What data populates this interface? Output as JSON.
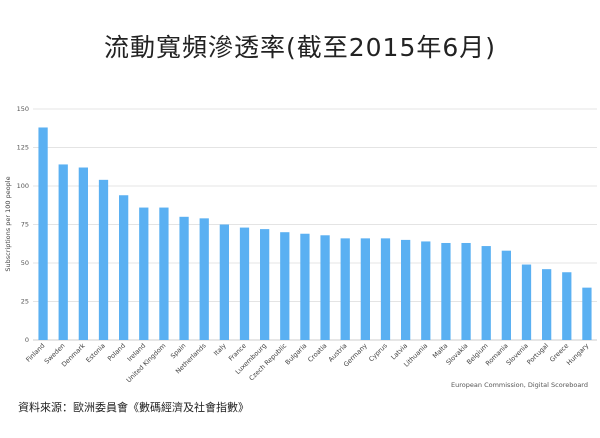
{
  "title": "流動寬頻滲透率(截至2015年6月)",
  "source_note": "資料來源：歐洲委員會《數碼經濟及社會指數》",
  "credit": "European Commission, Digital Scoreboard",
  "chart_data": {
    "type": "bar",
    "title": "流動寬頻滲透率(截至2015年6月)",
    "xlabel": "",
    "ylabel": "Subscriptions per 100 people",
    "ylim": [
      0,
      150
    ],
    "yticks": [
      0,
      25,
      50,
      75,
      100,
      125,
      150
    ],
    "grid": true,
    "bar_color": "#5ab0f2",
    "categories": [
      "Finland",
      "Sweden",
      "Denmark",
      "Estonia",
      "Poland",
      "Ireland",
      "United Kingdom",
      "Spain",
      "Netherlands",
      "Italy",
      "France",
      "Luxembourg",
      "Czech Republic",
      "Bulgaria",
      "Croatia",
      "Austria",
      "Germany",
      "Cyprus",
      "Latvia",
      "Lithuania",
      "Malta",
      "Slovakia",
      "Belgium",
      "Romania",
      "Slovenia",
      "Portugal",
      "Greece",
      "Hungary"
    ],
    "values": [
      138,
      114,
      112,
      104,
      94,
      86,
      86,
      80,
      79,
      75,
      73,
      72,
      70,
      69,
      68,
      66,
      66,
      66,
      65,
      64,
      63,
      63,
      61,
      58,
      49,
      46,
      44,
      34
    ]
  }
}
